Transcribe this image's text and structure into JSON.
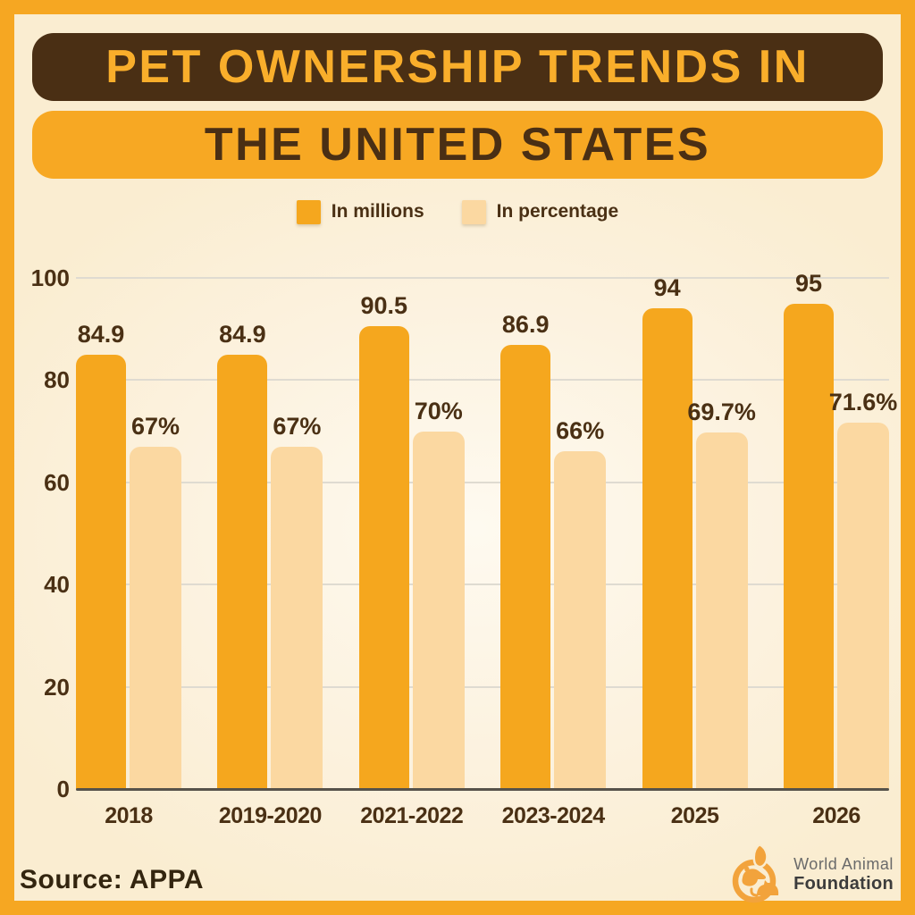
{
  "header": {
    "title_line1": "PET OWNERSHIP TRENDS IN",
    "title_line2": "THE UNITED STATES"
  },
  "legend": [
    {
      "label": "In millions",
      "color": "#F5A71E"
    },
    {
      "label": "In percentage",
      "color": "#FBD8A1"
    }
  ],
  "chart_data": {
    "type": "bar",
    "title": "Pet Ownership Trends in the United States",
    "categories": [
      "2018",
      "2019-2020",
      "2021-2022",
      "2023-2024",
      "2025",
      "2026"
    ],
    "series": [
      {
        "name": "In millions",
        "color": "#F5A71E",
        "values": [
          84.9,
          84.9,
          90.5,
          86.9,
          94,
          95
        ],
        "labels": [
          "84.9",
          "84.9",
          "90.5",
          "86.9",
          "94",
          "95"
        ]
      },
      {
        "name": "In percentage",
        "color": "#FBD8A1",
        "values": [
          67,
          67,
          70,
          66,
          69.7,
          71.6
        ],
        "labels": [
          "67%",
          "67%",
          "70%",
          "66%",
          "69.7%",
          "71.6%"
        ]
      }
    ],
    "xlabel": "",
    "ylabel": "",
    "ylim": [
      0,
      100
    ],
    "yticks": [
      0,
      20,
      40,
      60,
      80,
      100
    ],
    "grid": true,
    "legend_position": "top"
  },
  "footer": {
    "source": "Source: APPA",
    "logo_line1": "World Animal",
    "logo_line2": "Foundation"
  },
  "colors": {
    "frame_orange": "#F6A722",
    "panel_cream": "#FAEDD1",
    "banner_brown": "#4A2F14",
    "banner_orange": "#F7A823",
    "title_orange_text": "#F9AE2B",
    "bar_millions": "#F5A71E",
    "bar_percentage": "#FBD8A1",
    "gridline": "#DFDBD1",
    "axis_line": "#56524A",
    "text_brown": "#4A3014",
    "source_text": "#33250F",
    "logo_orange": "#F2A33C"
  }
}
